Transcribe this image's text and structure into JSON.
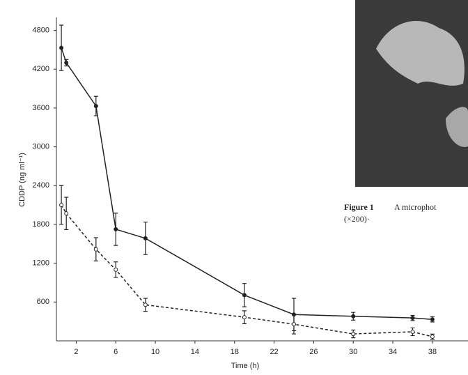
{
  "chart_data": {
    "type": "line",
    "x_label": "Time (h)",
    "y_label": "CDDP (ng ml⁻¹)",
    "x": [
      0.5,
      1,
      4,
      6,
      9,
      19,
      24,
      30,
      36,
      38
    ],
    "series": [
      {
        "color": "#222222",
        "dash": "solid",
        "marker": "filled",
        "values": [
          4530,
          4300,
          3630,
          1725,
          1585,
          707,
          407,
          380,
          354,
          332
        ],
        "errors": [
          350,
          50,
          150,
          250,
          250,
          180,
          250,
          60,
          40,
          40
        ]
      },
      {
        "color": "#222222",
        "dash": "dashed",
        "marker": "open",
        "values": [
          2100,
          1970,
          1415,
          1100,
          557,
          365,
          257,
          107,
          140,
          64
        ],
        "errors": [
          300,
          250,
          180,
          120,
          100,
          100,
          150,
          60,
          60,
          40
        ]
      }
    ],
    "xlim": [
      0,
      38.5
    ],
    "xticks": [
      2,
      6,
      10,
      14,
      18,
      22,
      26,
      30,
      34,
      38
    ],
    "ylim": [
      0,
      5000
    ],
    "yticks": [
      600,
      1200,
      1800,
      2400,
      3000,
      3600,
      4200,
      4800
    ],
    "grid": false
  },
  "figure_label": "Figure 1",
  "figure_text": "A microphot",
  "figure_scale": "(×200)·"
}
